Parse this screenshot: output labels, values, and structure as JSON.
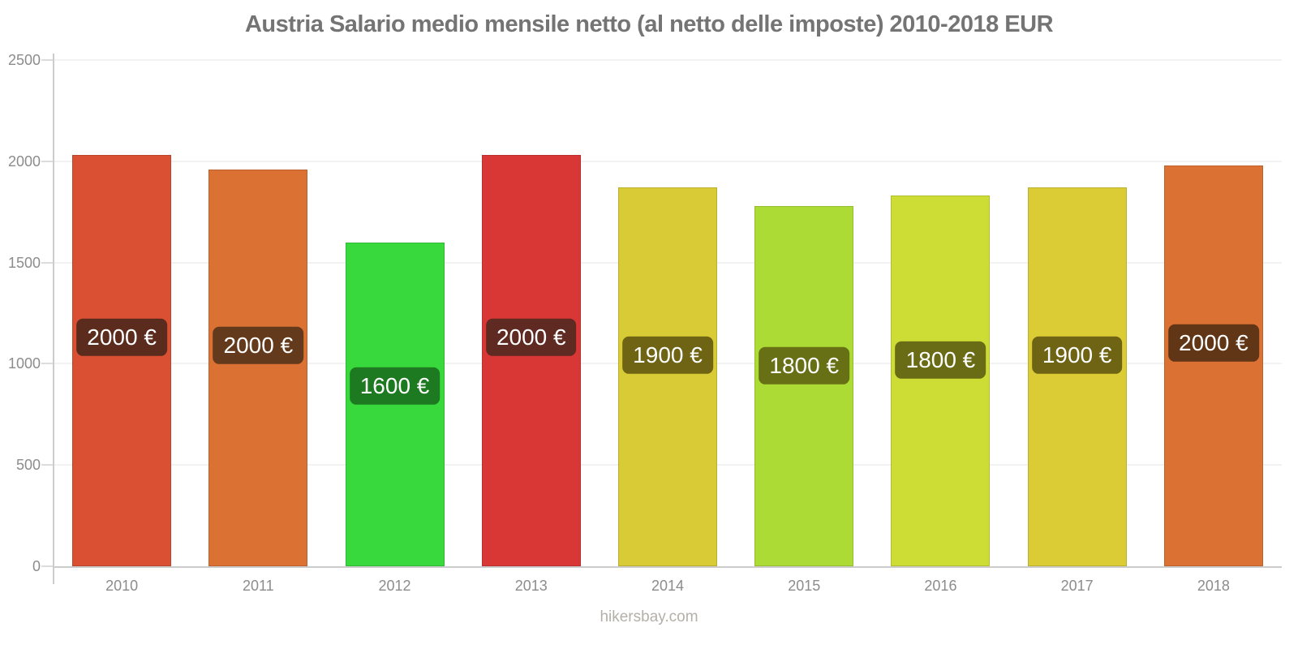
{
  "title": "Austria Salario medio mensile netto (al netto delle imposte) 2010-2018 EUR",
  "footer": "hikersbay.com",
  "chart_data": {
    "type": "bar",
    "title": "Austria Salario medio mensile netto (al netto delle imposte) 2010-2018 EUR",
    "categories": [
      "2010",
      "2011",
      "2012",
      "2013",
      "2014",
      "2015",
      "2016",
      "2017",
      "2018"
    ],
    "values": [
      2030,
      1960,
      1600,
      2030,
      1870,
      1780,
      1830,
      1870,
      1980
    ],
    "bar_labels": [
      "2000 €",
      "2000 €",
      "1600 €",
      "2000 €",
      "1900 €",
      "1800 €",
      "1800 €",
      "1900 €",
      "2000 €"
    ],
    "bar_colors": [
      "#d95132",
      "#db7233",
      "#38d93c",
      "#d93636",
      "#d9cb35",
      "#addb35",
      "#cedd35",
      "#dbcc36",
      "#db7233"
    ],
    "badge_colors": [
      "#5b2b1e",
      "#643a1c",
      "#1e7a20",
      "#5e2a22",
      "#6e6414",
      "#687016",
      "#696c15",
      "#6e6414",
      "#613617"
    ],
    "xlabel": "",
    "ylabel": "",
    "ylim": [
      0,
      2500
    ],
    "yticks": [
      0,
      500,
      1000,
      1500,
      2000,
      2500
    ],
    "grid": true,
    "legend": "none",
    "currency": "EUR",
    "unit_suffix": " €"
  }
}
